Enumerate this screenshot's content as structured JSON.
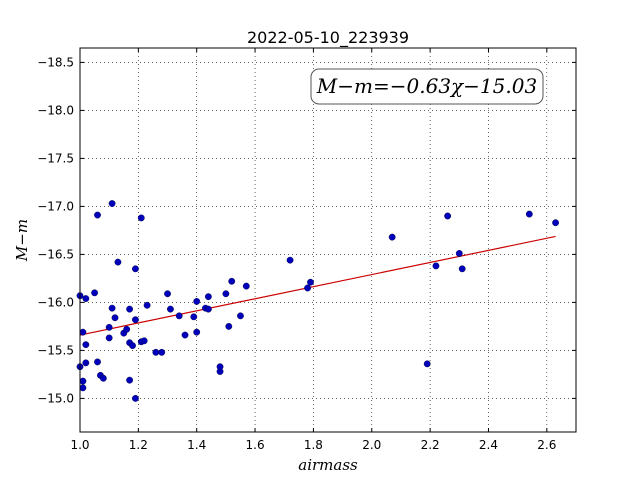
{
  "chart_data": {
    "type": "scatter",
    "title": "2022-05-10_223939",
    "xlabel": "airmass",
    "ylabel": "M−m",
    "xlim": [
      1.0,
      2.7
    ],
    "ylim": [
      -18.65,
      -14.65
    ],
    "y_inverted": true,
    "grid": true,
    "x_ticks": [
      "1.0",
      "1.2",
      "1.4",
      "1.6",
      "1.8",
      "2.0",
      "2.2",
      "2.4",
      "2.6"
    ],
    "y_ticks": [
      "−15.0",
      "−15.5",
      "−16.0",
      "−16.5",
      "−17.0",
      "−17.5",
      "−18.0",
      "−18.5"
    ],
    "annotation": "M−m=−0.63χ−15.03",
    "fit": {
      "slope": -0.63,
      "intercept": -15.03,
      "x_range": [
        1.0,
        2.63
      ],
      "color": "#cc0000"
    },
    "marker_color": "#0000bb",
    "points": [
      {
        "x": 1.0,
        "y": -15.33
      },
      {
        "x": 1.0,
        "y": -16.07
      },
      {
        "x": 1.01,
        "y": -15.11
      },
      {
        "x": 1.01,
        "y": -15.18
      },
      {
        "x": 1.01,
        "y": -15.69
      },
      {
        "x": 1.02,
        "y": -15.56
      },
      {
        "x": 1.02,
        "y": -15.37
      },
      {
        "x": 1.02,
        "y": -16.04
      },
      {
        "x": 1.05,
        "y": -16.1
      },
      {
        "x": 1.06,
        "y": -16.91
      },
      {
        "x": 1.06,
        "y": -15.38
      },
      {
        "x": 1.07,
        "y": -15.24
      },
      {
        "x": 1.08,
        "y": -15.21
      },
      {
        "x": 1.1,
        "y": -15.74
      },
      {
        "x": 1.1,
        "y": -15.63
      },
      {
        "x": 1.11,
        "y": -15.94
      },
      {
        "x": 1.11,
        "y": -17.03
      },
      {
        "x": 1.12,
        "y": -15.84
      },
      {
        "x": 1.13,
        "y": -16.42
      },
      {
        "x": 1.15,
        "y": -15.68
      },
      {
        "x": 1.16,
        "y": -15.72
      },
      {
        "x": 1.17,
        "y": -15.19
      },
      {
        "x": 1.17,
        "y": -15.58
      },
      {
        "x": 1.17,
        "y": -15.93
      },
      {
        "x": 1.18,
        "y": -15.55
      },
      {
        "x": 1.19,
        "y": -15.0
      },
      {
        "x": 1.19,
        "y": -16.35
      },
      {
        "x": 1.19,
        "y": -15.82
      },
      {
        "x": 1.21,
        "y": -15.59
      },
      {
        "x": 1.21,
        "y": -16.88
      },
      {
        "x": 1.22,
        "y": -15.6
      },
      {
        "x": 1.23,
        "y": -15.97
      },
      {
        "x": 1.26,
        "y": -15.48
      },
      {
        "x": 1.28,
        "y": -15.48
      },
      {
        "x": 1.3,
        "y": -16.09
      },
      {
        "x": 1.31,
        "y": -15.93
      },
      {
        "x": 1.34,
        "y": -15.86
      },
      {
        "x": 1.36,
        "y": -15.66
      },
      {
        "x": 1.39,
        "y": -15.85
      },
      {
        "x": 1.4,
        "y": -15.69
      },
      {
        "x": 1.4,
        "y": -16.01
      },
      {
        "x": 1.43,
        "y": -15.94
      },
      {
        "x": 1.44,
        "y": -16.06
      },
      {
        "x": 1.44,
        "y": -15.93
      },
      {
        "x": 1.48,
        "y": -15.28
      },
      {
        "x": 1.48,
        "y": -15.33
      },
      {
        "x": 1.5,
        "y": -16.09
      },
      {
        "x": 1.51,
        "y": -15.75
      },
      {
        "x": 1.52,
        "y": -16.22
      },
      {
        "x": 1.55,
        "y": -15.86
      },
      {
        "x": 1.57,
        "y": -16.17
      },
      {
        "x": 1.72,
        "y": -16.44
      },
      {
        "x": 1.78,
        "y": -16.15
      },
      {
        "x": 1.79,
        "y": -16.21
      },
      {
        "x": 2.07,
        "y": -16.68
      },
      {
        "x": 2.19,
        "y": -15.36
      },
      {
        "x": 2.22,
        "y": -16.38
      },
      {
        "x": 2.26,
        "y": -16.9
      },
      {
        "x": 2.3,
        "y": -16.51
      },
      {
        "x": 2.31,
        "y": -16.35
      },
      {
        "x": 2.54,
        "y": -16.92
      },
      {
        "x": 2.63,
        "y": -16.83
      }
    ]
  }
}
